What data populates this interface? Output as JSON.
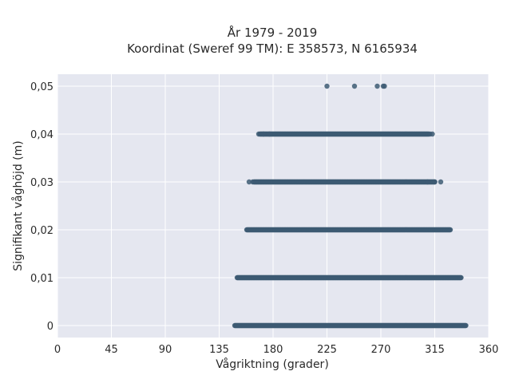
{
  "chart_data": {
    "type": "scatter",
    "title": "År 1979 - 2019",
    "subtitle": "Koordinat (Sweref 99 TM): E 358573, N 6165934",
    "xlabel": "Vågriktning (grader)",
    "ylabel": "Signifikant våghöjd (m)",
    "xlim": [
      0,
      360
    ],
    "ylim": [
      -0.0025,
      0.0525
    ],
    "x_ticks": [
      0,
      45,
      90,
      135,
      180,
      225,
      270,
      315,
      360
    ],
    "x_tick_labels": [
      "0",
      "45",
      "90",
      "135",
      "180",
      "225",
      "270",
      "315",
      "360"
    ],
    "y_ticks": [
      0,
      0.01,
      0.02,
      0.03,
      0.04,
      0.05
    ],
    "y_tick_labels": [
      "0",
      "0,01",
      "0,02",
      "0,03",
      "0,04",
      "0,05"
    ],
    "grid": true,
    "color": "#3d5a73",
    "background": "#e5e7f0",
    "bands": [
      {
        "y": 0.0,
        "x_min": 148,
        "x_max": 341
      },
      {
        "y": 0.01,
        "x_min": 150,
        "x_max": 337
      },
      {
        "y": 0.02,
        "x_min": 158,
        "x_max": 328
      },
      {
        "y": 0.03,
        "x_min": 164,
        "x_max": 315
      },
      {
        "y": 0.04,
        "x_min": 169,
        "x_max": 310
      }
    ],
    "isolated_points": [
      {
        "x": 160,
        "y": 0.03
      },
      {
        "x": 163,
        "y": 0.03
      },
      {
        "x": 309,
        "y": 0.03
      },
      {
        "x": 315,
        "y": 0.03
      },
      {
        "x": 320,
        "y": 0.03
      },
      {
        "x": 168,
        "y": 0.04
      },
      {
        "x": 172,
        "y": 0.04
      },
      {
        "x": 177,
        "y": 0.04
      },
      {
        "x": 311,
        "y": 0.04
      },
      {
        "x": 313,
        "y": 0.04
      },
      {
        "x": 225,
        "y": 0.05
      },
      {
        "x": 248,
        "y": 0.05
      },
      {
        "x": 267,
        "y": 0.05
      },
      {
        "x": 272,
        "y": 0.05
      },
      {
        "x": 273,
        "y": 0.05
      }
    ]
  }
}
